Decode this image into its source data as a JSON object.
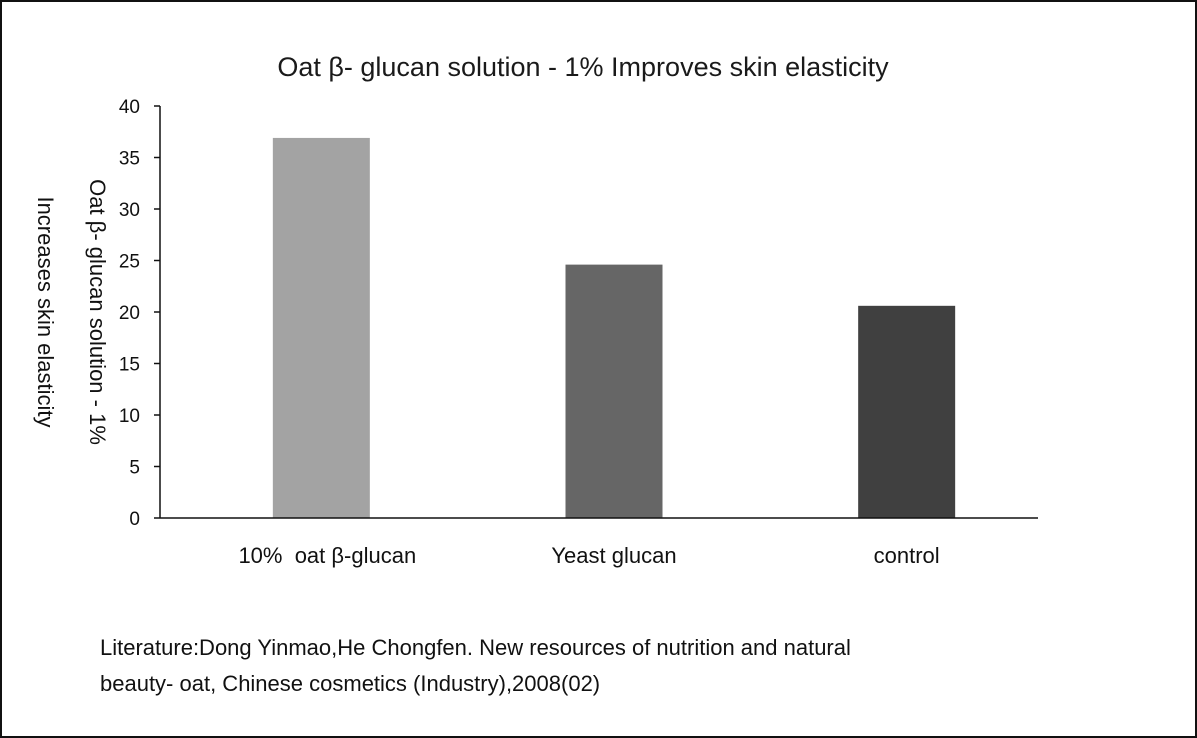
{
  "chart_data": {
    "type": "bar",
    "title": "Oat β- glucan solution - 1%  Improves skin elasticity",
    "ylabel_lines": [
      "Oat β- glucan solution - 1%",
      "Increases skin elasticity"
    ],
    "xlabel": "",
    "categories": [
      "10%  oat β-glucan",
      "Yeast glucan",
      "control"
    ],
    "values": [
      36.9,
      24.6,
      20.6
    ],
    "bar_colors": [
      "#a3a3a3",
      "#666666",
      "#404040"
    ],
    "ylim": [
      0,
      40
    ],
    "yticks": [
      0,
      5,
      10,
      15,
      20,
      25,
      30,
      35,
      40
    ],
    "grid": false,
    "legend": "none"
  },
  "source": {
    "line1": "Literature:Dong Yinmao,He Chongfen. New resources of nutrition and natural",
    "line2": "beauty- oat, Chinese cosmetics (Industry),2008(02)"
  }
}
